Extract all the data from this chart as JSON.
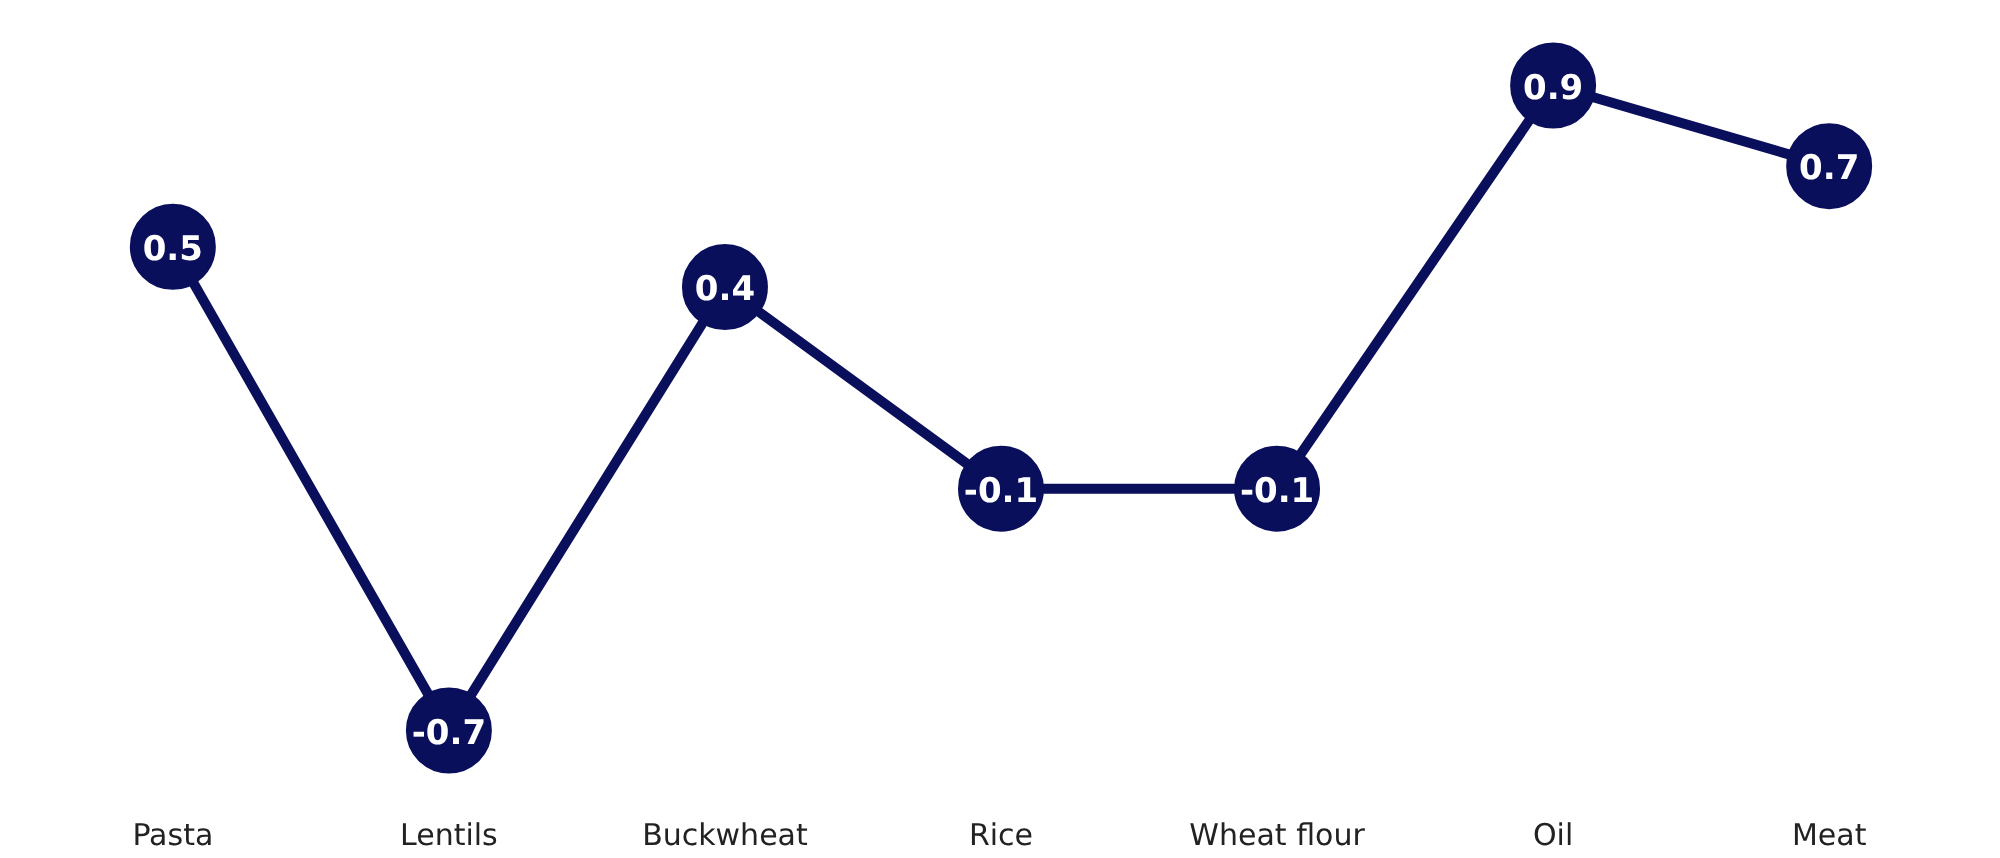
{
  "chart_data": {
    "type": "line",
    "categories": [
      "Pasta",
      "Lentils",
      "Buckwheat",
      "Rice",
      "Wheat flour",
      "Oil",
      "Meat"
    ],
    "series": [
      {
        "color": "#0a0f5c",
        "values": [
          0.5,
          -0.7,
          0.4,
          -0.1,
          -0.1,
          0.9,
          0.7
        ]
      }
    ],
    "data_labels": true,
    "marker": "circle",
    "line_style": "solid",
    "grid": false,
    "tick_labels": "x"
  }
}
